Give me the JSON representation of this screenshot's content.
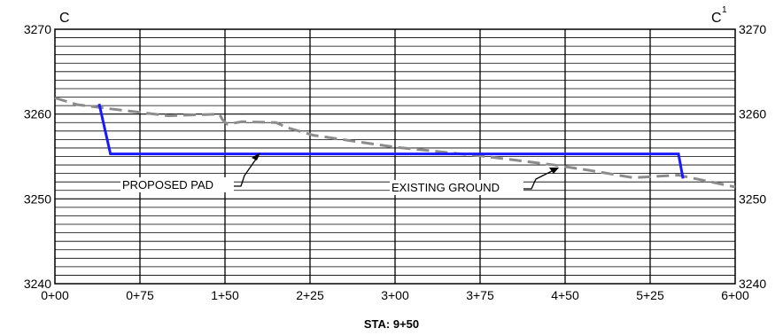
{
  "section_labels": {
    "left": "C",
    "right_base": "C",
    "right_sup": "1"
  },
  "station_caption": "STA: 9+50",
  "annotations": {
    "proposed_pad": "PROPOSED PAD",
    "existing_ground": "EXISTING GROUND"
  },
  "y_ticks": [
    "3270",
    "3260",
    "3250",
    "3240"
  ],
  "x_ticks": [
    "0+00",
    "0+75",
    "1+50",
    "2+25",
    "3+00",
    "3+75",
    "4+50",
    "5+25",
    "6+00"
  ],
  "colors": {
    "proposed": "#1a1aff",
    "existing": "#8c8c8c",
    "grid": "#000000"
  },
  "chart_data": {
    "type": "line",
    "xlim": [
      0,
      600
    ],
    "ylim": [
      3240,
      3270
    ],
    "grid": true,
    "series": [
      {
        "name": "PROPOSED PAD",
        "style": "solid",
        "x": [
          39,
          49,
          550,
          554
        ],
        "y": [
          3261.2,
          3255.3,
          3255.3,
          3252.4
        ]
      },
      {
        "name": "EXISTING GROUND",
        "style": "dashed",
        "x": [
          0,
          20,
          50,
          100,
          145,
          148,
          152,
          165,
          195,
          205,
          228,
          300,
          380,
          440,
          470,
          510,
          550,
          600
        ],
        "y": [
          3261.9,
          3261.1,
          3260.6,
          3259.8,
          3260.0,
          3259.3,
          3258.8,
          3259.1,
          3259.0,
          3258.4,
          3257.5,
          3256.1,
          3255.0,
          3254.0,
          3253.4,
          3252.5,
          3252.8,
          3251.4
        ]
      }
    ]
  }
}
